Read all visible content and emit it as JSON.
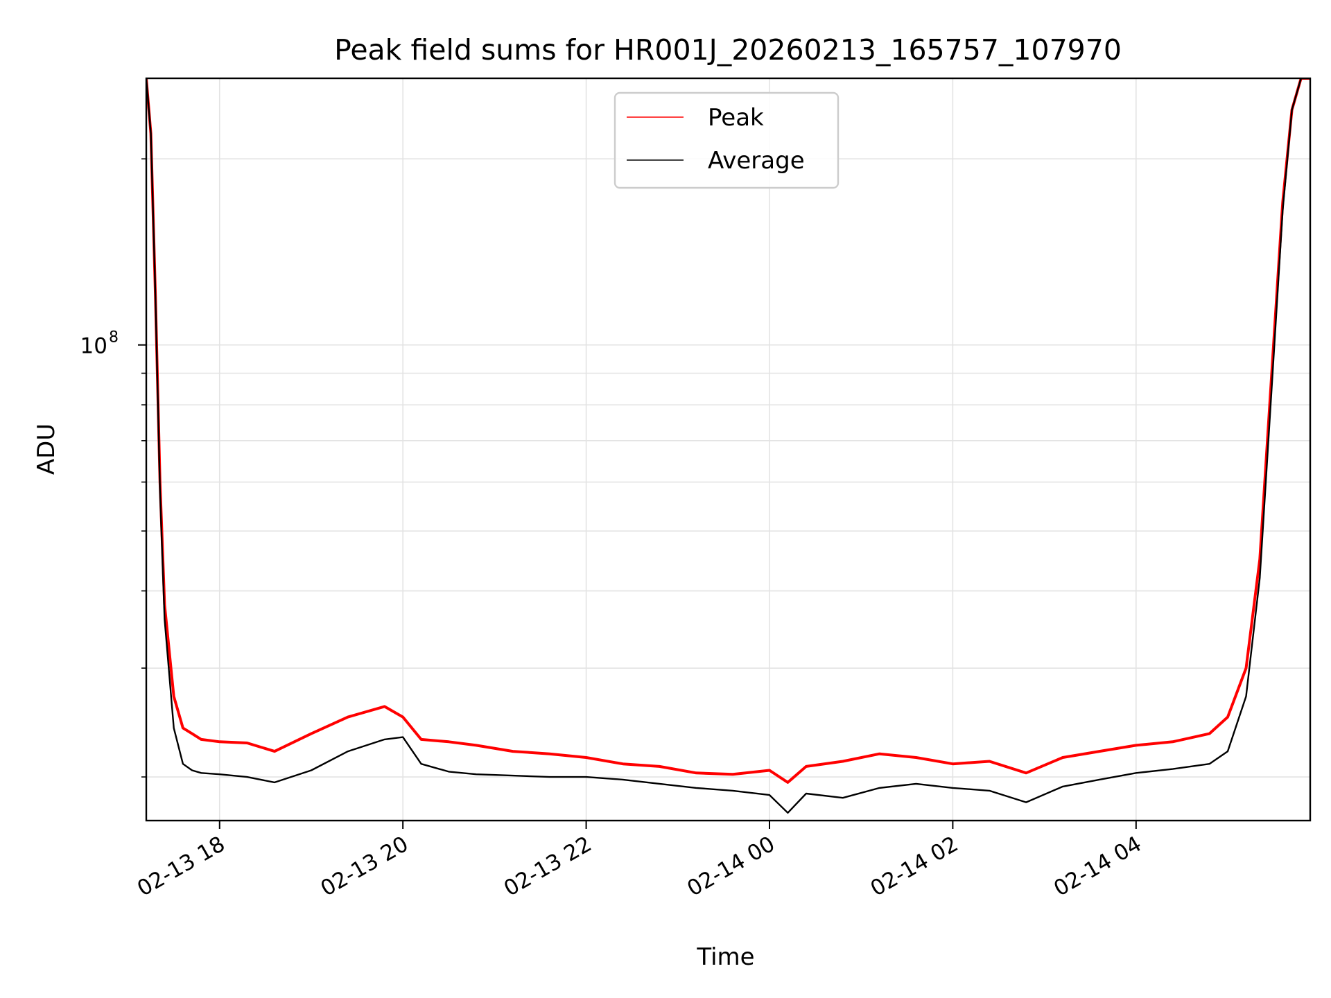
{
  "chart_data": {
    "type": "line",
    "title": "Peak field sums for HR001J_20260213_165757_107970",
    "xlabel": "Time",
    "ylabel": "ADU",
    "yscale": "log",
    "grid": true,
    "legend_position": "top-center",
    "x_range_hours": [
      17.2,
      29.9
    ],
    "ylim": [
      17000000,
      270000000
    ],
    "x_tick_hours": [
      18,
      20,
      22,
      24,
      26,
      28
    ],
    "x_tick_labels": [
      "02-13 18",
      "02-13 20",
      "02-13 22",
      "02-14 00",
      "02-14 02",
      "02-14 04"
    ],
    "y_major_ticks": [
      {
        "value": 100000000,
        "base": "10",
        "exp": "8"
      }
    ],
    "y_minor_ticks": [
      20000000,
      30000000,
      40000000,
      50000000,
      60000000,
      70000000,
      80000000,
      90000000,
      200000000
    ],
    "series": [
      {
        "name": "Peak",
        "color": "#ff0000",
        "x_hours": [
          17.2,
          17.25,
          17.3,
          17.35,
          17.4,
          17.5,
          17.6,
          17.7,
          17.8,
          18.0,
          18.3,
          18.6,
          19.0,
          19.4,
          19.8,
          20.0,
          20.2,
          20.5,
          20.8,
          21.2,
          21.6,
          22.0,
          22.4,
          22.8,
          23.2,
          23.6,
          24.0,
          24.2,
          24.4,
          24.8,
          25.2,
          25.6,
          26.0,
          26.4,
          26.8,
          27.2,
          27.6,
          28.0,
          28.4,
          28.8,
          29.0,
          29.2,
          29.35,
          29.5,
          29.6,
          29.7,
          29.8,
          29.9
        ],
        "values": [
          270000000,
          220000000,
          120000000,
          60000000,
          38000000,
          27000000,
          24000000,
          23500000,
          23000000,
          22800000,
          22700000,
          22000000,
          23500000,
          25000000,
          26000000,
          25000000,
          23000000,
          22800000,
          22500000,
          22000000,
          21800000,
          21500000,
          21000000,
          20800000,
          20300000,
          20200000,
          20500000,
          19600000,
          20800000,
          21200000,
          21800000,
          21500000,
          21000000,
          21200000,
          20300000,
          21500000,
          22000000,
          22500000,
          22800000,
          23500000,
          25000000,
          30000000,
          45000000,
          100000000,
          170000000,
          240000000,
          270000000,
          270000000
        ]
      },
      {
        "name": "Average",
        "color": "#000000",
        "x_hours": [
          17.2,
          17.25,
          17.3,
          17.35,
          17.4,
          17.5,
          17.6,
          17.7,
          17.8,
          18.0,
          18.3,
          18.6,
          19.0,
          19.4,
          19.8,
          20.0,
          20.2,
          20.5,
          20.8,
          21.2,
          21.6,
          22.0,
          22.4,
          22.8,
          23.2,
          23.6,
          24.0,
          24.2,
          24.4,
          24.8,
          25.2,
          25.6,
          26.0,
          26.4,
          26.8,
          27.2,
          27.6,
          28.0,
          28.4,
          28.8,
          29.0,
          29.2,
          29.35,
          29.5,
          29.6,
          29.7,
          29.8,
          29.9
        ],
        "values": [
          270000000,
          220000000,
          120000000,
          58000000,
          36000000,
          24000000,
          21000000,
          20500000,
          20300000,
          20200000,
          20000000,
          19600000,
          20500000,
          22000000,
          23000000,
          23200000,
          21000000,
          20400000,
          20200000,
          20100000,
          20000000,
          20000000,
          19800000,
          19500000,
          19200000,
          19000000,
          18700000,
          17500000,
          18800000,
          18500000,
          19200000,
          19500000,
          19200000,
          19000000,
          18200000,
          19300000,
          19800000,
          20300000,
          20600000,
          21000000,
          22000000,
          27000000,
          42000000,
          95000000,
          165000000,
          240000000,
          270000000,
          270000000
        ]
      }
    ]
  }
}
